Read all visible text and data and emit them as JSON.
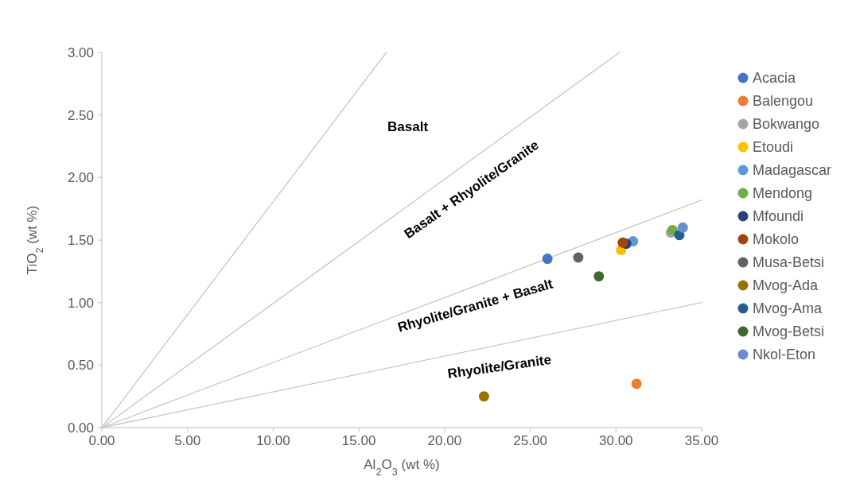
{
  "chart_data": {
    "type": "scatter",
    "xlabel": "Al$_{2}$O$_{3}$ (wt %)",
    "ylabel": "TiO$_{2}$ (wt %)",
    "xlim": [
      0,
      35
    ],
    "ylim": [
      0,
      3
    ],
    "xticks": [
      {
        "value": 0,
        "label": "0.00"
      },
      {
        "value": 5,
        "label": "5.00"
      },
      {
        "value": 10,
        "label": "10.00"
      },
      {
        "value": 15,
        "label": "15.00"
      },
      {
        "value": 20,
        "label": "20.00"
      },
      {
        "value": 25,
        "label": "25.00"
      },
      {
        "value": 30,
        "label": "30.00"
      },
      {
        "value": 35,
        "label": "35.00"
      }
    ],
    "yticks": [
      {
        "value": 0,
        "label": "0.00"
      },
      {
        "value": 0.5,
        "label": "0.50"
      },
      {
        "value": 1,
        "label": "1.00"
      },
      {
        "value": 1.5,
        "label": "1.50"
      },
      {
        "value": 2,
        "label": "2.00"
      },
      {
        "value": 2.5,
        "label": "2.50"
      },
      {
        "value": 3,
        "label": "3.00"
      }
    ],
    "legend": "right",
    "marker": "circle",
    "grid": false,
    "annotations": [
      "Basalt",
      "Basalt + Rhyolite/Granite",
      "Rhyolite/Granite + Basalt",
      "Rhyolite/Granite"
    ],
    "series": [
      {
        "type": "line",
        "color": "#c8c8c8",
        "marker": "none",
        "x": [
          0,
          16.6
        ],
        "values": [
          0,
          3
        ]
      },
      {
        "type": "line",
        "color": "#c8c8c8",
        "marker": "none",
        "x": [
          0,
          30.2
        ],
        "values": [
          0,
          3
        ]
      },
      {
        "type": "line",
        "color": "#c8c8c8",
        "marker": "none",
        "x": [
          0,
          35
        ],
        "values": [
          0,
          1.82
        ]
      },
      {
        "type": "line",
        "color": "#c8c8c8",
        "marker": "none",
        "x": [
          0,
          35
        ],
        "values": [
          0,
          1
        ]
      },
      {
        "name": "Acacia",
        "color": "#4472c4",
        "x": [
          26.0
        ],
        "values": [
          1.35
        ]
      },
      {
        "name": "Balengou",
        "color": "#ed7d31",
        "x": [
          31.2
        ],
        "values": [
          0.35
        ]
      },
      {
        "name": "Bokwango",
        "color": "#a5a5a5",
        "x": [
          33.2
        ],
        "values": [
          1.56
        ]
      },
      {
        "name": "Etoudi",
        "color": "#ffc000",
        "x": [
          30.3
        ],
        "values": [
          1.42
        ]
      },
      {
        "name": "Madagascar",
        "color": "#5b9bd5",
        "x": [
          31.0
        ],
        "values": [
          1.49
        ]
      },
      {
        "name": "Mendong",
        "color": "#70ad47",
        "x": [
          33.3
        ],
        "values": [
          1.58
        ]
      },
      {
        "name": "Mfoundi",
        "color": "#264478",
        "x": [
          30.6
        ],
        "values": [
          1.47
        ]
      },
      {
        "name": "Mokolo",
        "color": "#9e480e",
        "x": [
          30.4
        ],
        "values": [
          1.48
        ]
      },
      {
        "name": "Musa-Betsi",
        "color": "#636363",
        "x": [
          27.8
        ],
        "values": [
          1.36
        ]
      },
      {
        "name": "Mvog-Ada",
        "color": "#997300",
        "x": [
          22.3
        ],
        "values": [
          0.25
        ]
      },
      {
        "name": "Mvog-Ama",
        "color": "#255e91",
        "x": [
          33.7
        ],
        "values": [
          1.54
        ]
      },
      {
        "name": "Mvog-Betsi",
        "color": "#43682b",
        "x": [
          29.0
        ],
        "values": [
          1.21
        ]
      },
      {
        "name": "Nkol-Eton",
        "color": "#698ed0",
        "x": [
          33.9
        ],
        "values": [
          1.6
        ]
      }
    ]
  }
}
